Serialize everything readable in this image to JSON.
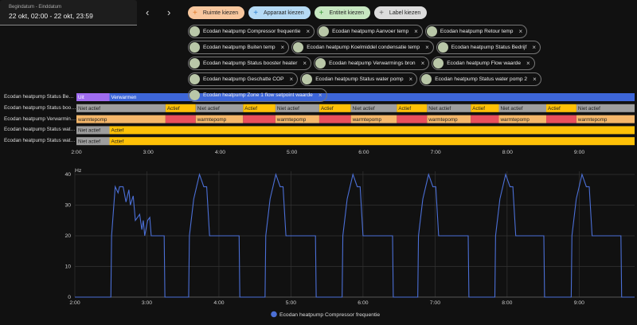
{
  "date_picker": {
    "label": "Begindatum - Einddatum",
    "value": "22 okt, 02:00 - 22 okt, 23:59"
  },
  "buttons": [
    "Ruimte kiezen",
    "Apparaat kiezen",
    "Entiteit kiezen",
    "Label kiezen"
  ],
  "chips": [
    "Ecodan heatpump Compressor frequentie",
    "Ecodan heatpump Aanvoer temp",
    "Ecodan heatpump Retour temp",
    "Ecodan heatpump Buiten temp",
    "Ecodan heatpump Koelmiddel condensatie temp",
    "Ecodan heatpump Status Bedrijf",
    "Ecodan heatpump Status booster heater",
    "Ecodan heatpump Verwarmings bron",
    "Ecodan heatpump Flow waarde",
    "Ecodan heatpump Geschatte COP",
    "Ecodan heatpump Status water pomp",
    "Ecodan heatpump Status water pomp 2",
    "Ecodan heatpump Zone 1 flow setpoint waarde"
  ],
  "history": {
    "timeline": {
      "xlim": [
        2,
        9.77
      ],
      "xticks": [
        {
          "value": 2,
          "label": "2:00"
        },
        {
          "value": 3,
          "label": "3:00"
        },
        {
          "value": 4,
          "label": "4:00"
        },
        {
          "value": 5,
          "label": "5:00"
        },
        {
          "value": 6,
          "label": "6:00"
        },
        {
          "value": 7,
          "label": "7:00"
        },
        {
          "value": 8,
          "label": "8:00"
        },
        {
          "value": 9,
          "label": "9:00"
        }
      ],
      "rows": [
        {
          "name": "Ecodan heatpump Status Bedrijf",
          "segments": [
            {
              "start": 2,
              "end": 2.46,
              "label": "Uit",
              "color": "#a06cf0"
            },
            {
              "start": 2.46,
              "end": 9.77,
              "label": "Verwarmen",
              "color": "#3d66d8"
            }
          ]
        },
        {
          "name": "Ecodan heatpump Status booster heater",
          "segments": [
            {
              "start": 2,
              "end": 3.24,
              "label": "Niet actief",
              "color": "#9e9e9e"
            },
            {
              "start": 3.24,
              "end": 3.66,
              "label": "Actief",
              "color": "#ffc107"
            },
            {
              "start": 3.66,
              "end": 4.32,
              "label": "Niet actief",
              "color": "#9e9e9e"
            },
            {
              "start": 4.32,
              "end": 4.77,
              "label": "Actief",
              "color": "#ffc107"
            },
            {
              "start": 4.77,
              "end": 5.38,
              "label": "Niet actief",
              "color": "#9e9e9e"
            },
            {
              "start": 5.38,
              "end": 5.82,
              "label": "Actief",
              "color": "#ffc107"
            },
            {
              "start": 5.82,
              "end": 6.46,
              "label": "Niet actief",
              "color": "#9e9e9e"
            },
            {
              "start": 6.46,
              "end": 6.88,
              "label": "Actief",
              "color": "#ffc107"
            },
            {
              "start": 6.88,
              "end": 7.49,
              "label": "Niet actief",
              "color": "#9e9e9e"
            },
            {
              "start": 7.49,
              "end": 7.88,
              "label": "Actief",
              "color": "#ffc107"
            },
            {
              "start": 7.88,
              "end": 8.54,
              "label": "Niet actief",
              "color": "#9e9e9e"
            },
            {
              "start": 8.54,
              "end": 8.96,
              "label": "Actief",
              "color": "#ffc107"
            },
            {
              "start": 8.96,
              "end": 9.77,
              "label": "Niet actief",
              "color": "#9e9e9e"
            }
          ]
        },
        {
          "name": "Ecodan heatpump Verwarmings bron",
          "segments": [
            {
              "start": 2,
              "end": 3.24,
              "label": "warmtepomp",
              "color": "#f5b76a"
            },
            {
              "start": 3.24,
              "end": 3.66,
              "label": null,
              "color": "#e9505c"
            },
            {
              "start": 3.66,
              "end": 4.32,
              "label": "warmtepomp",
              "color": "#f5b76a"
            },
            {
              "start": 4.32,
              "end": 4.77,
              "label": null,
              "color": "#e9505c"
            },
            {
              "start": 4.77,
              "end": 5.38,
              "label": "warmtepomp",
              "color": "#f5b76a"
            },
            {
              "start": 5.38,
              "end": 5.82,
              "label": null,
              "color": "#e9505c"
            },
            {
              "start": 5.82,
              "end": 6.46,
              "label": "warmtepomp",
              "color": "#f5b76a"
            },
            {
              "start": 6.46,
              "end": 6.88,
              "label": null,
              "color": "#e9505c"
            },
            {
              "start": 6.88,
              "end": 7.49,
              "label": "warmtepomp",
              "color": "#f5b76a"
            },
            {
              "start": 7.49,
              "end": 7.88,
              "label": null,
              "color": "#e9505c"
            },
            {
              "start": 7.88,
              "end": 8.54,
              "label": "warmtepomp",
              "color": "#f5b76a"
            },
            {
              "start": 8.54,
              "end": 8.96,
              "label": null,
              "color": "#e9505c"
            },
            {
              "start": 8.96,
              "end": 9.77,
              "label": "warmtepomp",
              "color": "#f5b76a"
            }
          ]
        },
        {
          "name": "Ecodan heatpump Status water pomp",
          "segments": [
            {
              "start": 2,
              "end": 2.46,
              "label": "Niet actief",
              "color": "#9e9e9e"
            },
            {
              "start": 2.46,
              "end": 9.77,
              "label": "Actief",
              "color": "#ffc107"
            }
          ]
        },
        {
          "name": "Ecodan heatpump Status water pomp 2",
          "segments": [
            {
              "start": 2,
              "end": 2.46,
              "label": "Niet actief",
              "color": "#9e9e9e"
            },
            {
              "start": 2.46,
              "end": 9.77,
              "label": "Actief",
              "color": "#ffc107"
            }
          ]
        }
      ]
    },
    "line_chart": {
      "type": "line",
      "y_unit": "Hz",
      "xlim": [
        2,
        9.77
      ],
      "ylim": [
        0,
        40
      ],
      "yticks": [
        0,
        10,
        20,
        30,
        40
      ],
      "grid": true,
      "xticks": [
        {
          "value": 2,
          "label": "2:00"
        },
        {
          "value": 3,
          "label": "3:00"
        },
        {
          "value": 4,
          "label": "4:00"
        },
        {
          "value": 5,
          "label": "5:00"
        },
        {
          "value": 6,
          "label": "6:00"
        },
        {
          "value": 7,
          "label": "7:00"
        },
        {
          "value": 8,
          "label": "8:00"
        },
        {
          "value": 9,
          "label": "9:00"
        }
      ],
      "series": [
        {
          "name": "Ecodan heatpump Compressor frequentie",
          "color": "#4b6fd6",
          "x": [
            2,
            2.5,
            2.51,
            2.56,
            2.6,
            2.62,
            2.67,
            2.71,
            2.75,
            2.77,
            2.81,
            2.84,
            2.9,
            2.93,
            2.95,
            2.97,
            3.01,
            3.04,
            3.06,
            3.09,
            3.24,
            3.25,
            3.58,
            3.59,
            3.65,
            3.69,
            3.73,
            3.79,
            3.83,
            3.87,
            4.28,
            4.29,
            4.64,
            4.65,
            4.71,
            4.75,
            4.79,
            4.85,
            4.89,
            4.93,
            5.34,
            5.35,
            5.71,
            5.72,
            5.78,
            5.82,
            5.86,
            5.92,
            5.96,
            6,
            6.41,
            6.42,
            6.76,
            6.77,
            6.83,
            6.87,
            6.91,
            6.97,
            7.01,
            7.05,
            7.46,
            7.47,
            7.83,
            7.84,
            7.9,
            7.94,
            7.98,
            8.04,
            8.08,
            8.12,
            8.51,
            8.52,
            8.89,
            8.9,
            8.96,
            9,
            9.04,
            9.1,
            9.14,
            9.18,
            9.58,
            9.59,
            9.77
          ],
          "values": [
            0,
            0,
            20,
            36,
            34,
            36,
            36,
            31,
            35,
            30,
            33,
            25,
            27,
            22,
            25,
            20,
            25,
            26,
            20,
            20,
            20,
            0,
            0,
            20,
            32,
            36,
            40,
            36,
            36,
            20,
            20,
            0,
            0,
            20,
            32,
            36,
            40,
            36,
            36,
            20,
            20,
            0,
            0,
            20,
            32,
            36,
            40,
            36,
            36,
            20,
            20,
            0,
            0,
            20,
            32,
            36,
            40,
            36,
            36,
            20,
            20,
            0,
            0,
            20,
            32,
            36,
            40,
            36,
            36,
            20,
            20,
            0,
            0,
            20,
            32,
            36,
            40,
            36,
            36,
            20,
            20,
            0,
            0
          ]
        }
      ]
    }
  }
}
